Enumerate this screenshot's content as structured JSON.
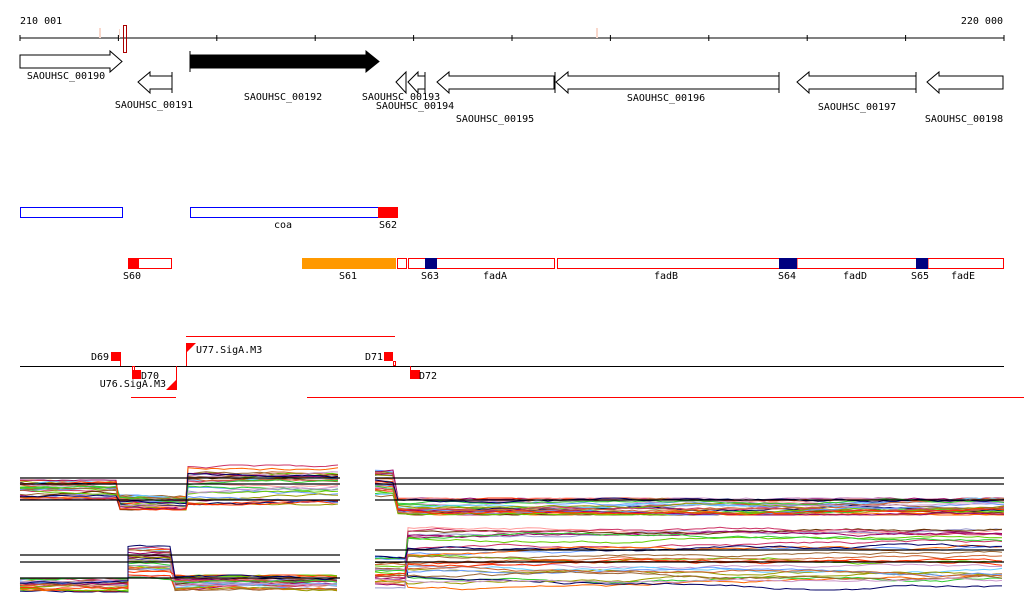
{
  "ruler": {
    "start_label": "210 001",
    "end_label": "220 000"
  },
  "genes": [
    {
      "id": "SAOUHSC_00190",
      "strand": "+",
      "filled": false
    },
    {
      "id": "SAOUHSC_00191",
      "strand": "-",
      "filled": false
    },
    {
      "id": "SAOUHSC_00192",
      "strand": "+",
      "filled": true
    },
    {
      "id": "SAOUHSC_00193",
      "strand": "-",
      "filled": false
    },
    {
      "id": "SAOUHSC_00194",
      "strand": "-",
      "filled": false
    },
    {
      "id": "SAOUHSC_00195",
      "strand": "-",
      "filled": false
    },
    {
      "id": "SAOUHSC_00196",
      "strand": "-",
      "filled": false
    },
    {
      "id": "SAOUHSC_00197",
      "strand": "-",
      "filled": false
    },
    {
      "id": "SAOUHSC_00198",
      "strand": "-",
      "filled": false
    }
  ],
  "operons": {
    "coa": "coa",
    "S62": "S62",
    "S60": "S60",
    "S61": "S61",
    "S63": "S63",
    "fadA": "fadA",
    "fadB": "fadB",
    "S64": "S64",
    "fadD": "fadD",
    "S65": "S65",
    "fadE": "fadE"
  },
  "sites": {
    "D69": "D69",
    "D70": "D70",
    "U76": "U76.SigA.M3",
    "U77": "U77.SigA.M3",
    "D71": "D71",
    "D72": "D72"
  },
  "colors": {
    "red": "#ff0000",
    "blue": "#0000ff",
    "navy": "#000080",
    "orange": "#ff9900",
    "series": [
      "#ff6600",
      "#66cc00",
      "#999900",
      "#cc3366",
      "#6699ff",
      "#990066",
      "#cc6633",
      "#996633",
      "#cc99cc",
      "#33cc33",
      "#ff3300",
      "#000066",
      "#ff9999",
      "#9999cc",
      "#66ccff",
      "#663300"
    ]
  }
}
